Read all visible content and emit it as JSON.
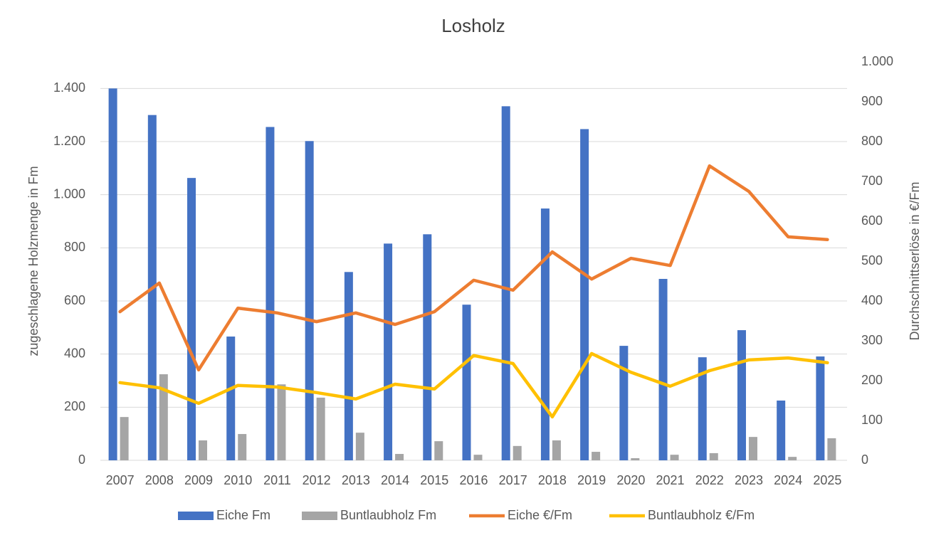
{
  "chart_data": {
    "type": "bar",
    "title": "Losholz",
    "y_label": "zugeschlagene Holzmenge in Fm",
    "y2_label": "Durchschnittserlöse in €/Fm",
    "categories": [
      "2007",
      "2008",
      "2009",
      "2010",
      "2011",
      "2012",
      "2013",
      "2014",
      "2015",
      "2016",
      "2017",
      "2018",
      "2019",
      "2020",
      "2021",
      "2022",
      "2023",
      "2024",
      "2025"
    ],
    "series": [
      {
        "name": "Eiche Fm",
        "type": "bar",
        "color": "#4472c4",
        "values": [
          1400,
          1300,
          1063,
          466,
          1255,
          1202,
          709,
          816,
          851,
          586,
          1333,
          948,
          1247,
          431,
          683,
          388,
          490,
          225,
          391
        ]
      },
      {
        "name": "Buntlaubholz Fm",
        "type": "bar",
        "color": "#a5a5a5",
        "values": [
          163,
          324,
          75,
          99,
          286,
          236,
          104,
          24,
          72,
          21,
          54,
          75,
          32,
          8,
          21,
          27,
          88,
          13,
          83
        ]
      },
      {
        "name": "Eiche €/Fm",
        "type": "line",
        "axis": "y2",
        "color": "#ed7d31",
        "values": [
          373,
          445,
          227,
          382,
          370,
          348,
          370,
          341,
          373,
          452,
          427,
          523,
          455,
          507,
          489,
          739,
          675,
          561,
          554
        ]
      },
      {
        "name": "Buntlaubholz €/Fm",
        "type": "line",
        "axis": "y2",
        "color": "#ffc000",
        "values": [
          195,
          182,
          143,
          188,
          184,
          170,
          154,
          191,
          179,
          263,
          243,
          109,
          268,
          221,
          186,
          225,
          252,
          257,
          245
        ]
      }
    ],
    "ylim": [
      0,
      1500
    ],
    "yticks": [
      0,
      200,
      400,
      600,
      800,
      {
        "value": 1000,
        "label": "1.000"
      },
      {
        "value": 1200,
        "label": "1.200"
      },
      {
        "value": 1400,
        "label": "1.400"
      }
    ],
    "y2lim": [
      0,
      1000
    ],
    "y2ticks": [
      0,
      100,
      200,
      300,
      400,
      500,
      600,
      700,
      800,
      900,
      {
        "value": 1000,
        "label": "1.000"
      }
    ],
    "grid": true,
    "legend": "bottom"
  }
}
